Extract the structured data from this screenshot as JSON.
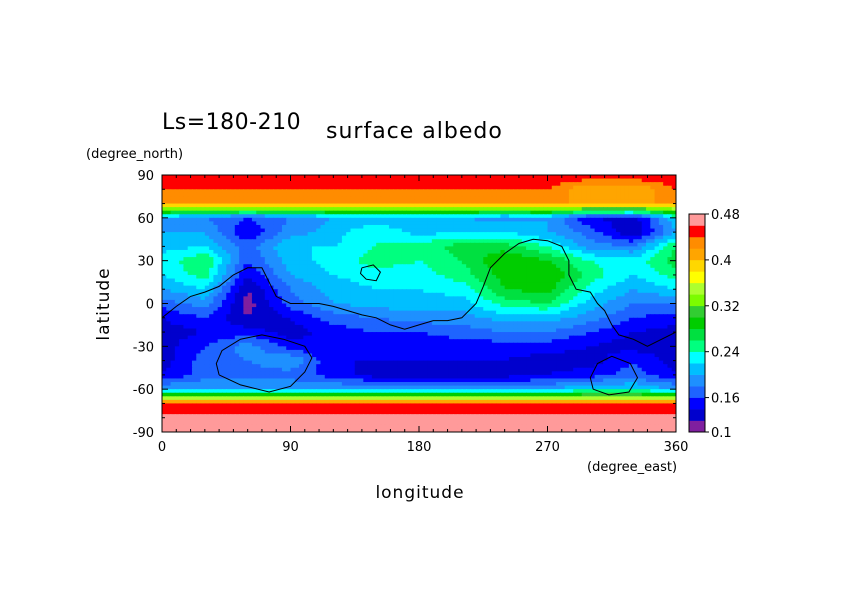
{
  "chart_data": {
    "type": "heatmap",
    "title_period": "Ls=180-210",
    "title_variable": "surface albedo",
    "xlabel": "longitude",
    "ylabel": "latitude",
    "xunit": "(degree_east)",
    "yunit": "(degree_north)",
    "xlim": [
      0,
      360
    ],
    "ylim": [
      -90,
      90
    ],
    "x_ticks": [
      0,
      90,
      180,
      270,
      360
    ],
    "y_ticks": [
      90,
      60,
      30,
      0,
      -30,
      -60,
      -90
    ],
    "colorbar": {
      "levels": [
        0.1,
        0.12,
        0.14,
        0.16,
        0.18,
        0.2,
        0.22,
        0.24,
        0.26,
        0.28,
        0.3,
        0.32,
        0.34,
        0.36,
        0.38,
        0.4,
        0.42,
        0.44,
        0.46,
        0.48
      ],
      "labels": [
        "0.1",
        "0.16",
        "0.24",
        "0.32",
        "0.4",
        "0.48"
      ],
      "label_values": [
        0.1,
        0.16,
        0.24,
        0.32,
        0.4,
        0.48
      ],
      "colors": [
        "#7f1f9f",
        "#0000cd",
        "#0000ff",
        "#1e64ff",
        "#1e90ff",
        "#00bfff",
        "#00ffff",
        "#00ff7f",
        "#00e040",
        "#00cd00",
        "#32cd32",
        "#7cfc00",
        "#adff2f",
        "#ffff00",
        "#ffd700",
        "#ffa500",
        "#ff8c00",
        "#ff0000",
        "#ff9a9a"
      ]
    },
    "field_grid": {
      "lon_step": 30,
      "lat": [
        90,
        80,
        70,
        60,
        50,
        40,
        30,
        20,
        10,
        0,
        -10,
        -20,
        -30,
        -40,
        -50,
        -60,
        -70,
        -80,
        -90
      ],
      "albedo": [
        [
          0.46,
          0.46,
          0.46,
          0.46,
          0.46,
          0.46,
          0.46,
          0.46,
          0.46,
          0.46,
          0.46,
          0.46,
          0.46
        ],
        [
          0.44,
          0.44,
          0.44,
          0.44,
          0.44,
          0.44,
          0.44,
          0.44,
          0.44,
          0.44,
          0.4,
          0.4,
          0.44
        ],
        [
          0.42,
          0.42,
          0.42,
          0.42,
          0.42,
          0.42,
          0.42,
          0.42,
          0.42,
          0.42,
          0.42,
          0.42,
          0.42
        ],
        [
          0.2,
          0.18,
          0.16,
          0.18,
          0.2,
          0.2,
          0.2,
          0.2,
          0.19,
          0.2,
          0.14,
          0.13,
          0.22
        ],
        [
          0.2,
          0.2,
          0.14,
          0.19,
          0.21,
          0.24,
          0.21,
          0.22,
          0.22,
          0.2,
          0.17,
          0.12,
          0.2
        ],
        [
          0.21,
          0.22,
          0.17,
          0.22,
          0.22,
          0.24,
          0.25,
          0.27,
          0.27,
          0.24,
          0.19,
          0.18,
          0.26
        ],
        [
          0.23,
          0.26,
          0.16,
          0.21,
          0.23,
          0.25,
          0.24,
          0.26,
          0.3,
          0.28,
          0.24,
          0.23,
          0.27
        ],
        [
          0.22,
          0.25,
          0.14,
          0.2,
          0.22,
          0.23,
          0.23,
          0.25,
          0.29,
          0.3,
          0.25,
          0.22,
          0.25
        ],
        [
          0.2,
          0.22,
          0.12,
          0.18,
          0.21,
          0.22,
          0.22,
          0.23,
          0.28,
          0.29,
          0.23,
          0.2,
          0.22
        ],
        [
          0.17,
          0.19,
          0.11,
          0.17,
          0.2,
          0.21,
          0.21,
          0.21,
          0.25,
          0.26,
          0.21,
          0.18,
          0.18
        ],
        [
          0.14,
          0.16,
          0.12,
          0.14,
          0.17,
          0.18,
          0.19,
          0.19,
          0.21,
          0.21,
          0.19,
          0.16,
          0.15
        ],
        [
          0.13,
          0.14,
          0.15,
          0.13,
          0.15,
          0.16,
          0.16,
          0.17,
          0.18,
          0.18,
          0.16,
          0.14,
          0.13
        ],
        [
          0.13,
          0.16,
          0.19,
          0.15,
          0.14,
          0.15,
          0.14,
          0.15,
          0.15,
          0.15,
          0.14,
          0.13,
          0.13
        ],
        [
          0.13,
          0.17,
          0.18,
          0.2,
          0.14,
          0.14,
          0.14,
          0.14,
          0.14,
          0.13,
          0.13,
          0.16,
          0.13
        ],
        [
          0.14,
          0.17,
          0.17,
          0.17,
          0.15,
          0.13,
          0.13,
          0.13,
          0.13,
          0.14,
          0.15,
          0.17,
          0.14
        ],
        [
          0.2,
          0.2,
          0.2,
          0.2,
          0.2,
          0.2,
          0.2,
          0.2,
          0.2,
          0.2,
          0.22,
          0.22,
          0.2
        ],
        [
          0.44,
          0.44,
          0.44,
          0.44,
          0.44,
          0.44,
          0.44,
          0.44,
          0.44,
          0.44,
          0.44,
          0.44,
          0.44
        ],
        [
          0.47,
          0.47,
          0.47,
          0.47,
          0.47,
          0.47,
          0.47,
          0.47,
          0.47,
          0.47,
          0.47,
          0.47,
          0.47
        ],
        [
          0.47,
          0.47,
          0.47,
          0.47,
          0.47,
          0.47,
          0.47,
          0.47,
          0.47,
          0.47,
          0.47,
          0.47,
          0.47
        ]
      ]
    },
    "contour_lines": [
      {
        "name": "contour-line-main",
        "points": [
          [
            0,
            -10
          ],
          [
            10,
            -2
          ],
          [
            20,
            5
          ],
          [
            30,
            8
          ],
          [
            40,
            12
          ],
          [
            50,
            20
          ],
          [
            60,
            25
          ],
          [
            70,
            25
          ],
          [
            75,
            15
          ],
          [
            80,
            5
          ],
          [
            90,
            0
          ],
          [
            110,
            0
          ],
          [
            120,
            -2
          ],
          [
            130,
            -5
          ],
          [
            140,
            -8
          ],
          [
            150,
            -10
          ],
          [
            160,
            -15
          ],
          [
            170,
            -18
          ],
          [
            180,
            -15
          ],
          [
            190,
            -12
          ],
          [
            200,
            -12
          ],
          [
            210,
            -10
          ],
          [
            220,
            0
          ],
          [
            225,
            12
          ],
          [
            230,
            25
          ],
          [
            240,
            35
          ],
          [
            250,
            42
          ],
          [
            260,
            45
          ],
          [
            270,
            44
          ],
          [
            280,
            40
          ],
          [
            285,
            30
          ],
          [
            285,
            20
          ],
          [
            290,
            10
          ],
          [
            300,
            8
          ],
          [
            305,
            0
          ],
          [
            310,
            -5
          ],
          [
            315,
            -15
          ],
          [
            320,
            -22
          ],
          [
            330,
            -25
          ],
          [
            340,
            -30
          ],
          [
            350,
            -25
          ],
          [
            360,
            -20
          ]
        ]
      },
      {
        "name": "contour-loop-large",
        "points": [
          [
            40,
            -50
          ],
          [
            55,
            -57
          ],
          [
            75,
            -62
          ],
          [
            90,
            -58
          ],
          [
            100,
            -48
          ],
          [
            105,
            -38
          ],
          [
            100,
            -30
          ],
          [
            85,
            -25
          ],
          [
            70,
            -22
          ],
          [
            55,
            -25
          ],
          [
            42,
            -33
          ],
          [
            38,
            -42
          ],
          [
            40,
            -50
          ]
        ]
      },
      {
        "name": "contour-loop-small-north",
        "points": [
          [
            140,
            25
          ],
          [
            148,
            27
          ],
          [
            153,
            22
          ],
          [
            150,
            16
          ],
          [
            143,
            17
          ],
          [
            139,
            21
          ],
          [
            140,
            25
          ]
        ]
      },
      {
        "name": "contour-loop-small-south",
        "points": [
          [
            302,
            -60
          ],
          [
            313,
            -64
          ],
          [
            327,
            -62
          ],
          [
            333,
            -52
          ],
          [
            328,
            -42
          ],
          [
            315,
            -37
          ],
          [
            305,
            -42
          ],
          [
            300,
            -52
          ],
          [
            302,
            -60
          ]
        ]
      }
    ]
  }
}
